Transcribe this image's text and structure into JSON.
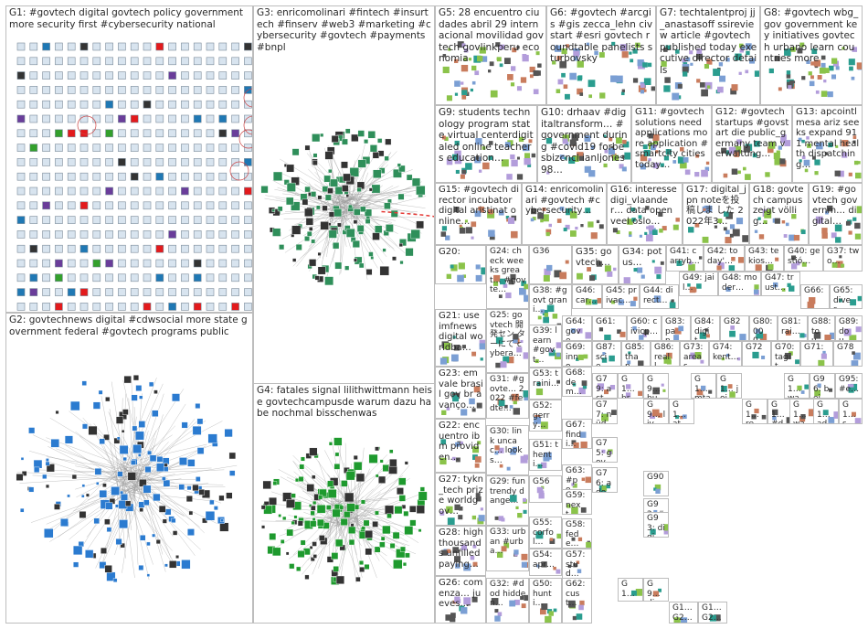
{
  "groups": [
    {
      "id": "G1",
      "text": "G1: #govtech digital govtech policy government more security first #cybersecurity national"
    },
    {
      "id": "G2",
      "text": "G2: govtechnews digital #cdwsocial more state government federal #govtech programs public"
    },
    {
      "id": "G3",
      "text": "G3: enricomolinari #fintech #insurtech #finserv #web3 #marketing #cybersecurity #govtech #payments #bnpl"
    },
    {
      "id": "G4",
      "text": "G4: fatales signal lilithwittmann heise govtechcampusde warum dazu habe nochmal bisschenwas"
    },
    {
      "id": "G5",
      "text": "G5: 28 encuentro ciudades abril 29 internacional movilidad govtech govlinkperu economia"
    },
    {
      "id": "G6",
      "text": "G6: #govtech #arcgis #gis zecca_lehn civstart #esri govtech roundtable panelists sturbovsky"
    },
    {
      "id": "G7",
      "text": "G7: techtalentproj jj_anastasoff ssireview article #govtech published today executive director details"
    },
    {
      "id": "G8",
      "text": "G8: #govtech wbg_gov government key initiatives govtech urbano learn countries more"
    },
    {
      "id": "G9",
      "text": "G9: students technology program state virtual centerdigitaled online teachers education…"
    },
    {
      "id": "G10",
      "text": "G10: drhaav #digitaltransform… #government during #covid19 forbesbizcncl ianljones98…"
    },
    {
      "id": "G11",
      "text": "G11: #govtech solutions need applications more application #smartcity cities today…"
    },
    {
      "id": "G12",
      "text": "G12: #govtech startups #govstart die public_germany team verwaltung…"
    },
    {
      "id": "G13",
      "text": "G13: apcointl mesa ariz seeks expand 911 mental health dispatching…"
    },
    {
      "id": "G15",
      "text": "G15: #govtech director incubator digital aristinat online…"
    },
    {
      "id": "G14",
      "text": "G14: enricomolinari #govtech #cybersecurity…"
    },
    {
      "id": "G16",
      "text": "G16: interesse digi_vlaander… data open veel oslo…"
    },
    {
      "id": "G17",
      "text": "G17: digital_jpn noteを投稿しま した 2022年3…"
    },
    {
      "id": "G18",
      "text": "G18: govtech campus zeigt völlig…"
    },
    {
      "id": "G19",
      "text": "G19: #govtech governm… digital…"
    },
    {
      "id": "G20",
      "text": "G20:"
    },
    {
      "id": "G24",
      "text": "G24: check weeks great… #govte…"
    },
    {
      "id": "G36",
      "text": "G36"
    },
    {
      "id": "G35",
      "text": "G35: govtech…"
    },
    {
      "id": "G34",
      "text": "G34: potus…"
    },
    {
      "id": "G41",
      "text": "G41: carryb…"
    },
    {
      "id": "G42",
      "text": "G42: today'…"
    },
    {
      "id": "G43",
      "text": "G43: tekios…"
    },
    {
      "id": "G40",
      "text": "G40: gestió…"
    },
    {
      "id": "G37",
      "text": "G37: two…"
    },
    {
      "id": "G38",
      "text": "G38: #govt grani…"
    },
    {
      "id": "G46",
      "text": "G46: car…"
    },
    {
      "id": "G45",
      "text": "G45: privac…"
    },
    {
      "id": "G44",
      "text": "G44: direct…"
    },
    {
      "id": "G49",
      "text": "G49: jail…"
    },
    {
      "id": "G48",
      "text": "G48: moder…"
    },
    {
      "id": "G47",
      "text": "G47: trust…"
    },
    {
      "id": "G66",
      "text": "G66:"
    },
    {
      "id": "G65",
      "text": "G65: diver…"
    },
    {
      "id": "G21",
      "text": "G21: use imfnews digital worldba…"
    },
    {
      "id": "G25",
      "text": "G25: govtech 開発セン ターにて cybera…"
    },
    {
      "id": "G39",
      "text": "G39: learn #govt…"
    },
    {
      "id": "G64",
      "text": "G64: gove…"
    },
    {
      "id": "G61",
      "text": "G61:"
    },
    {
      "id": "G60",
      "text": "G60: civicp…"
    },
    {
      "id": "G83",
      "text": "G83: pan…"
    },
    {
      "id": "G84",
      "text": "G84: digit…"
    },
    {
      "id": "G82",
      "text": "G82"
    },
    {
      "id": "G80",
      "text": "G80: 000…"
    },
    {
      "id": "G81",
      "text": "G81: rai…"
    },
    {
      "id": "G88",
      "text": "G88: tou…"
    },
    {
      "id": "G89",
      "text": "G89: dou…"
    },
    {
      "id": "G69",
      "text": "G69: inno…"
    },
    {
      "id": "G87",
      "text": "G87: scie…"
    },
    {
      "id": "G85",
      "text": "G85: than…"
    },
    {
      "id": "G86",
      "text": "G86: reall…"
    },
    {
      "id": "G73",
      "text": "G73: areas…"
    },
    {
      "id": "G74",
      "text": "G74: kent…"
    },
    {
      "id": "G72",
      "text": "G72"
    },
    {
      "id": "G70",
      "text": "G70: tagit…"
    },
    {
      "id": "G71",
      "text": "G71:"
    },
    {
      "id": "G78",
      "text": "G78"
    },
    {
      "id": "G23",
      "text": "G23: em vale brasil gov br avanço…"
    },
    {
      "id": "G31",
      "text": "G31: #govte… 2022 #fedte…"
    },
    {
      "id": "G53",
      "text": "G53: traini…"
    },
    {
      "id": "G68",
      "text": "G68: dem…"
    },
    {
      "id": "G79",
      "text": "G79: act…"
    },
    {
      "id": "G1x",
      "text": "G1… bre…"
    },
    {
      "id": "G9x",
      "text": "G9… bu…"
    },
    {
      "id": "G1y",
      "text": "G1… mta"
    },
    {
      "id": "G1z",
      "text": "G1… join…"
    },
    {
      "id": "G1w",
      "text": "G1… wai…"
    },
    {
      "id": "G96",
      "text": "G96: bei…"
    },
    {
      "id": "G95",
      "text": "G95: #e…"
    },
    {
      "id": "G77",
      "text": "G77: nüd…"
    },
    {
      "id": "G9a",
      "text": "G9… live…"
    },
    {
      "id": "G1a",
      "text": "G1… ate…"
    },
    {
      "id": "G1b",
      "text": "G1… rec…"
    },
    {
      "id": "G1c",
      "text": "G1… #di…"
    },
    {
      "id": "G1d",
      "text": "G1… wat…"
    },
    {
      "id": "G1e",
      "text": "G1… ad…"
    },
    {
      "id": "G1f",
      "text": "G1… so…"
    },
    {
      "id": "G22",
      "text": "G22: encuentro ibm providen…"
    },
    {
      "id": "G52",
      "text": "G52: gerry…"
    },
    {
      "id": "G67",
      "text": "G67: findi…"
    },
    {
      "id": "G75",
      "text": "G75: gov…"
    },
    {
      "id": "G30",
      "text": "G30: link uncac… looks…"
    },
    {
      "id": "G51",
      "text": "G51: thenti…"
    },
    {
      "id": "G63",
      "text": "G63: #po…"
    },
    {
      "id": "G76",
      "text": "G76: ado…"
    },
    {
      "id": "G90",
      "text": "G90"
    },
    {
      "id": "G27",
      "text": "G27: tykn_tech prize worldgov…"
    },
    {
      "id": "G29",
      "text": "G29: fun trendy dange…"
    },
    {
      "id": "G56",
      "text": "G56"
    },
    {
      "id": "G59",
      "text": "G59: next…"
    },
    {
      "id": "G92",
      "text": "G92: #go…"
    },
    {
      "id": "G93",
      "text": "G93: digi…"
    },
    {
      "id": "G28",
      "text": "G28: high thousands unfilled paying…"
    },
    {
      "id": "G33",
      "text": "G33: urban #urba…"
    },
    {
      "id": "G55",
      "text": "G55: corfol…"
    },
    {
      "id": "G58",
      "text": "G58: fede…"
    },
    {
      "id": "G54",
      "text": "G54: apr…"
    },
    {
      "id": "G57",
      "text": "G57: stud…"
    },
    {
      "id": "G26",
      "text": "G26: comenza… jueves…"
    },
    {
      "id": "G32",
      "text": "G32: #dod hidden…"
    },
    {
      "id": "G50",
      "text": "G50: hunti…"
    },
    {
      "id": "G62",
      "text": "G62: cust…"
    },
    {
      "id": "G9b",
      "text": "G9… die"
    },
    {
      "id": "G1g",
      "text": "G1… me…"
    },
    {
      "id": "G1h",
      "text": "G1… G2…"
    },
    {
      "id": "G1i",
      "text": "G1… G2…"
    }
  ],
  "colors": {
    "panel_border": "#bdbdbd",
    "g1_node_fill": "#d8e4ef",
    "g2_node": "#2b7bd0",
    "g3_node": "#2f8f5a",
    "g4_node": "#1e9a2e",
    "edge": "#9a9a9a",
    "highlight_edge": "#e53935"
  }
}
